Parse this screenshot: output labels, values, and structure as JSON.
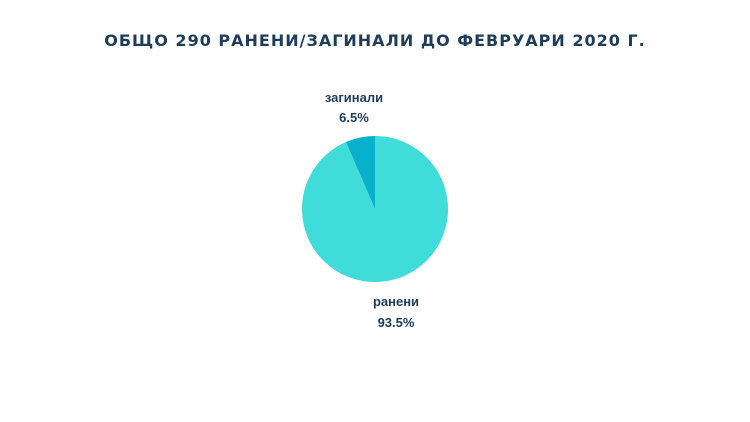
{
  "colors": {
    "background": "#ffffff",
    "title": "#1d3d5a",
    "label": "#1d3d5a"
  },
  "chart_data": {
    "type": "pie",
    "title": "ОБЩО 290 РАНЕНИ/ЗАГИНАЛИ ДО ФЕВРУАРИ 2020 Г.",
    "slices": [
      {
        "label": "ранени",
        "value": 93.5,
        "value_label": "93.5%",
        "color": "#40dcd9"
      },
      {
        "label": "загинали",
        "value": 6.5,
        "value_label": "6.5%",
        "color": "#07b1cc"
      }
    ],
    "legend": "none"
  }
}
